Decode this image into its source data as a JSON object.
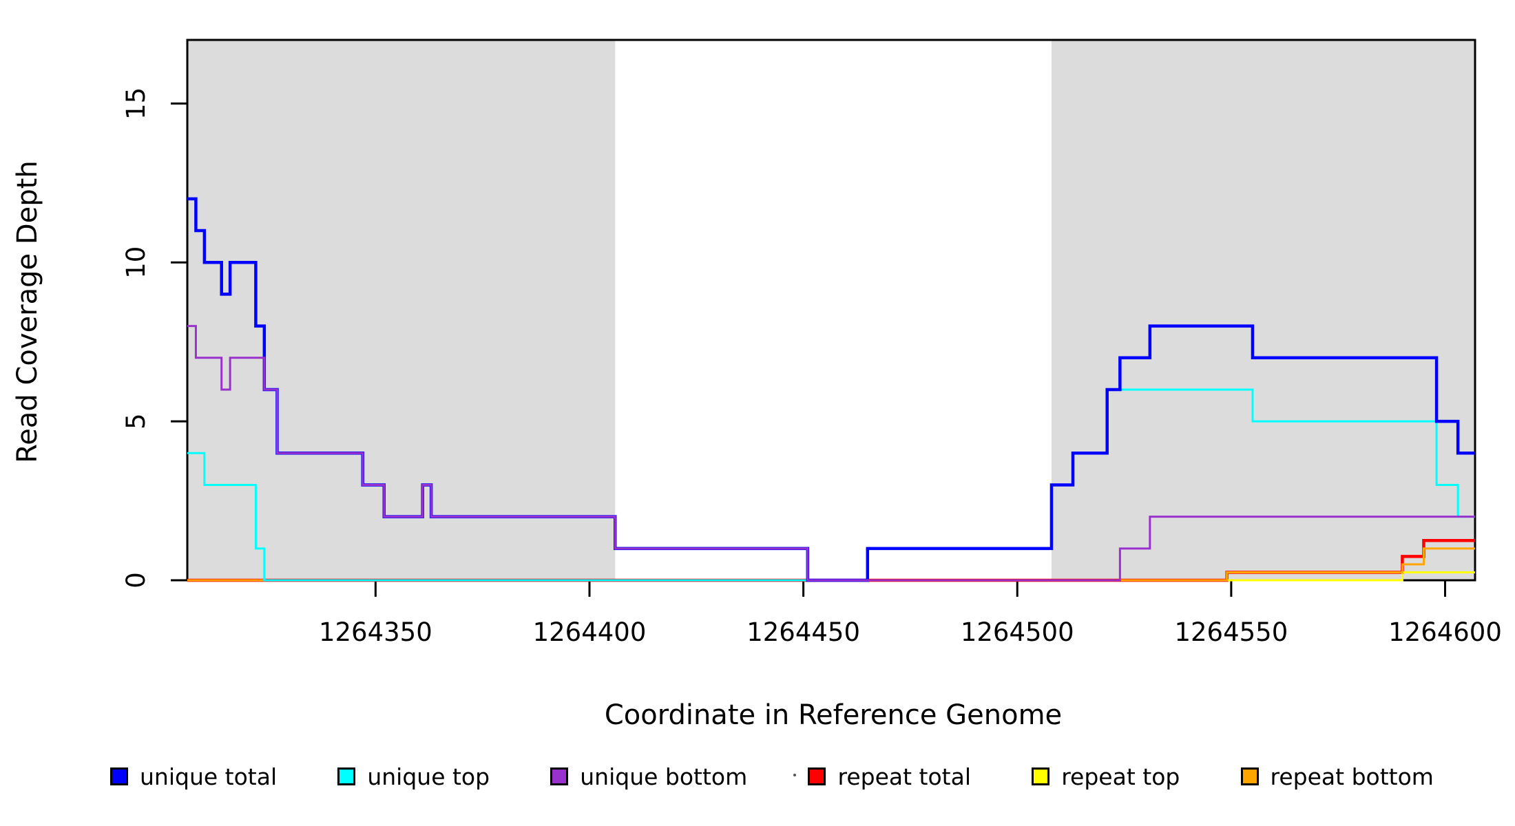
{
  "figure": {
    "background": "#ffffff",
    "band_color": "#dcdcdc",
    "axis_color": "#000000",
    "tick_length": 24
  },
  "chart_data": {
    "type": "line",
    "subtype": "step-coverage",
    "title": "",
    "xlabel": "Coordinate in Reference Genome",
    "ylabel": "Read Coverage Depth",
    "xlim": [
      1264306,
      1264607
    ],
    "ylim": [
      0,
      17
    ],
    "xticks": [
      1264350,
      1264400,
      1264450,
      1264500,
      1264550,
      1264600
    ],
    "yticks": [
      0,
      5,
      10,
      15
    ],
    "grid": "off",
    "legend_position": "bottom",
    "shaded_regions": [
      {
        "from": 1264306,
        "to": 1264406
      },
      {
        "from": 1264508,
        "to": 1264607
      }
    ],
    "series": [
      {
        "name": "unique total",
        "color": "#0000ff",
        "width": 4.5,
        "steps": [
          [
            1264306,
            12
          ],
          [
            1264308,
            11
          ],
          [
            1264310,
            10
          ],
          [
            1264314,
            9
          ],
          [
            1264316,
            10
          ],
          [
            1264322,
            8
          ],
          [
            1264324,
            6
          ],
          [
            1264327,
            4
          ],
          [
            1264347,
            3
          ],
          [
            1264352,
            2
          ],
          [
            1264361,
            3
          ],
          [
            1264363,
            2
          ],
          [
            1264406,
            1
          ],
          [
            1264451,
            0
          ],
          [
            1264465,
            1
          ],
          [
            1264508,
            3
          ],
          [
            1264513,
            4
          ],
          [
            1264521,
            6
          ],
          [
            1264524,
            7
          ],
          [
            1264531,
            8
          ],
          [
            1264555,
            7
          ],
          [
            1264598,
            5
          ],
          [
            1264603,
            4
          ]
        ]
      },
      {
        "name": "unique top",
        "color": "#00ffff",
        "width": 3,
        "steps": [
          [
            1264306,
            4
          ],
          [
            1264310,
            3
          ],
          [
            1264322,
            1
          ],
          [
            1264324,
            0
          ],
          [
            1264465,
            1
          ],
          [
            1264508,
            3
          ],
          [
            1264513,
            4
          ],
          [
            1264521,
            6
          ],
          [
            1264555,
            5
          ],
          [
            1264598,
            3
          ],
          [
            1264603,
            2
          ]
        ]
      },
      {
        "name": "unique bottom",
        "color": "#9932cc",
        "width": 3,
        "steps": [
          [
            1264306,
            8
          ],
          [
            1264308,
            7
          ],
          [
            1264314,
            6
          ],
          [
            1264316,
            7
          ],
          [
            1264324,
            6
          ],
          [
            1264327,
            4
          ],
          [
            1264347,
            3
          ],
          [
            1264352,
            2
          ],
          [
            1264361,
            3
          ],
          [
            1264363,
            2
          ],
          [
            1264406,
            1
          ],
          [
            1264451,
            0
          ],
          [
            1264524,
            1
          ],
          [
            1264531,
            2
          ]
        ]
      },
      {
        "name": "repeat total",
        "color": "#ff0000",
        "width": 4.5,
        "steps": [
          [
            1264306,
            0
          ],
          [
            1264549,
            0.25
          ],
          [
            1264590,
            0.75
          ],
          [
            1264595,
            1.25
          ]
        ]
      },
      {
        "name": "repeat top",
        "color": "#ffff00",
        "width": 3,
        "steps": [
          [
            1264306,
            0
          ],
          [
            1264590,
            0.25
          ]
        ]
      },
      {
        "name": "repeat bottom",
        "color": "#ffa500",
        "width": 3,
        "steps": [
          [
            1264306,
            0
          ],
          [
            1264549,
            0.25
          ],
          [
            1264590,
            0.5
          ],
          [
            1264595,
            1
          ]
        ]
      }
    ],
    "draw_order": [
      "repeat total",
      "repeat top",
      "repeat bottom",
      "unique top",
      "unique total",
      "unique bottom"
    ],
    "legend": [
      {
        "label": "unique total",
        "color": "#0000ff"
      },
      {
        "label": "unique top",
        "color": "#00ffff"
      },
      {
        "label": "unique bottom",
        "color": "#9932cc"
      },
      {
        "label": "repeat total",
        "color": "#ff0000"
      },
      {
        "label": "repeat top",
        "color": "#ffff00"
      },
      {
        "label": "repeat bottom",
        "color": "#ffa500"
      }
    ]
  }
}
